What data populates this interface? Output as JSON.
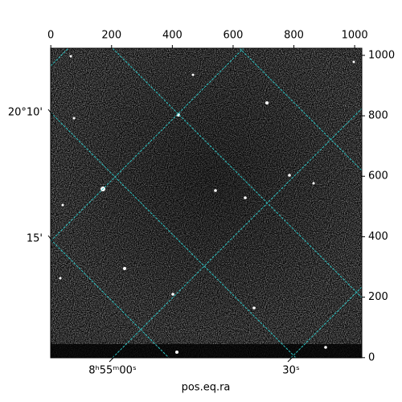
{
  "chart_data": {
    "type": "image",
    "xlim": [
      -0.5,
      1023.5
    ],
    "xticks": [
      0,
      200,
      400,
      600,
      800,
      1000
    ],
    "ylim": [
      -0.5,
      1023.5
    ],
    "yticks": [
      0,
      200,
      400,
      600,
      800,
      1000
    ],
    "ra_ticks": [
      "8ʰ55ᵐ00ˢ",
      "30ˢ"
    ],
    "dec_ticks": [
      "20°10'",
      "15'"
    ],
    "xlabel": "pos.eq.ra",
    "grid_color": "#2ec4c4"
  }
}
